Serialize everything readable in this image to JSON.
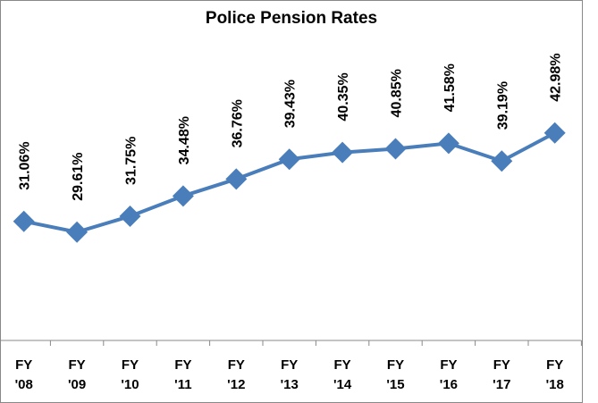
{
  "chart_data": {
    "type": "line",
    "title": "Police Pension Rates",
    "categories": [
      "FY '08",
      "FY '09",
      "FY '10",
      "FY '11",
      "FY '12",
      "FY '13",
      "FY '14",
      "FY '15",
      "FY '16",
      "FY '17",
      "FY '18"
    ],
    "series": [
      {
        "name": "Police Pension Rates",
        "color": "#4a7ebb",
        "values": [
          31.06,
          29.61,
          31.75,
          34.48,
          36.76,
          39.43,
          40.35,
          40.85,
          41.58,
          39.19,
          42.98
        ],
        "value_labels": [
          "31.06%",
          "29.61%",
          "31.75%",
          "34.48%",
          "36.76%",
          "39.43%",
          "40.35%",
          "40.85%",
          "41.58%",
          "39.19%",
          "42.98%"
        ]
      }
    ],
    "ylim": [
      15,
      60
    ]
  }
}
